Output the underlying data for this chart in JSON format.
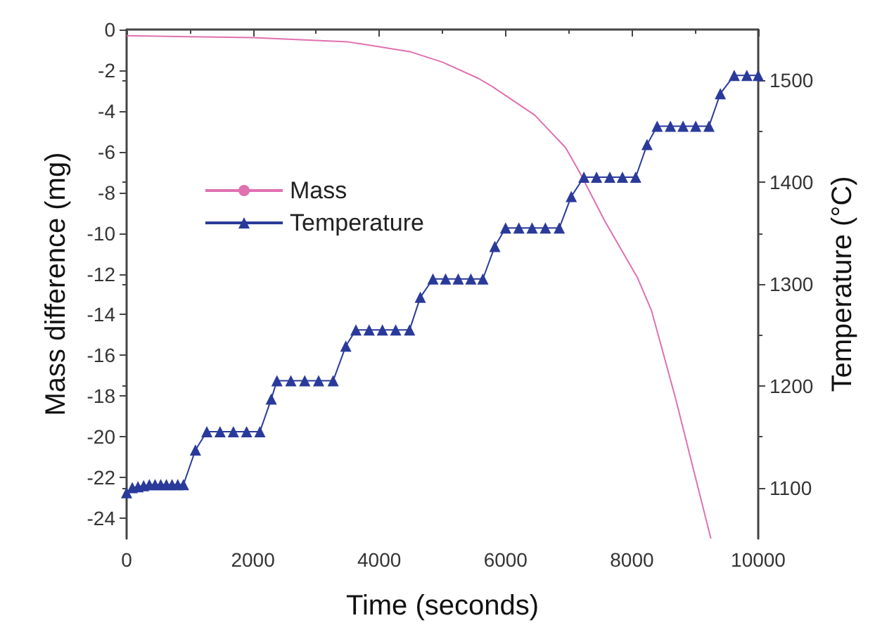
{
  "chart_data": {
    "type": "line",
    "xlabel": "Time (seconds)",
    "ylabel": "Mass difference (mg)",
    "y2label": "Temperature (°C)",
    "xlim": [
      0,
      10000
    ],
    "xticks": [
      0,
      2000,
      4000,
      6000,
      8000,
      10000
    ],
    "ylim": [
      -25,
      0
    ],
    "yticks": [
      -24,
      -22,
      -20,
      -18,
      -16,
      -14,
      -12,
      -10,
      -8,
      -6,
      -4,
      -2,
      0
    ],
    "y2lim": [
      1050,
      1550
    ],
    "y2ticks": [
      1100,
      1200,
      1300,
      1400,
      1500
    ],
    "grid": false,
    "legend": "left",
    "series": [
      {
        "name": "Mass",
        "color": "#e070b0",
        "marker": "none",
        "x": [
          0,
          2000,
          3500,
          4500,
          5000,
          5570,
          5790,
          6460,
          6950,
          7170,
          7570,
          8090,
          8310,
          8690,
          9250
        ],
        "values": [
          -0.3,
          -0.4,
          -0.6,
          -1.1,
          -1.6,
          -2.4,
          -2.8,
          -4.2,
          -5.8,
          -7.0,
          -9.4,
          -12.2,
          -13.8,
          -18.1,
          -25
        ]
      },
      {
        "name": "Temperature",
        "color": "#2a3a9a",
        "marker": "triangle",
        "axis": "y2",
        "x": [
          0,
          90,
          180,
          270,
          360,
          450,
          540,
          630,
          720,
          810,
          900,
          1090,
          1270,
          1480,
          1690,
          1900,
          2110,
          2290,
          2380,
          2600,
          2820,
          3040,
          3270,
          3470,
          3630,
          3840,
          4050,
          4260,
          4480,
          4650,
          4850,
          5050,
          5250,
          5450,
          5640,
          5830,
          6000,
          6210,
          6420,
          6630,
          6850,
          7040,
          7240,
          7440,
          7650,
          7850,
          8060,
          8240,
          8400,
          8610,
          8810,
          9010,
          9220,
          9400,
          9620,
          9820,
          10000
        ],
        "values": [
          1095,
          1100,
          1101,
          1102,
          1103,
          1103,
          1103,
          1103,
          1103,
          1103,
          1103,
          1137,
          1155,
          1155,
          1155,
          1155,
          1155,
          1187,
          1205,
          1205,
          1205,
          1205,
          1205,
          1239,
          1255,
          1255,
          1255,
          1255,
          1255,
          1287,
          1305,
          1305,
          1305,
          1305,
          1305,
          1337,
          1355,
          1355,
          1355,
          1355,
          1355,
          1386,
          1405,
          1405,
          1405,
          1405,
          1405,
          1437,
          1455,
          1455,
          1455,
          1455,
          1455,
          1487,
          1505,
          1505,
          1505
        ]
      }
    ]
  }
}
